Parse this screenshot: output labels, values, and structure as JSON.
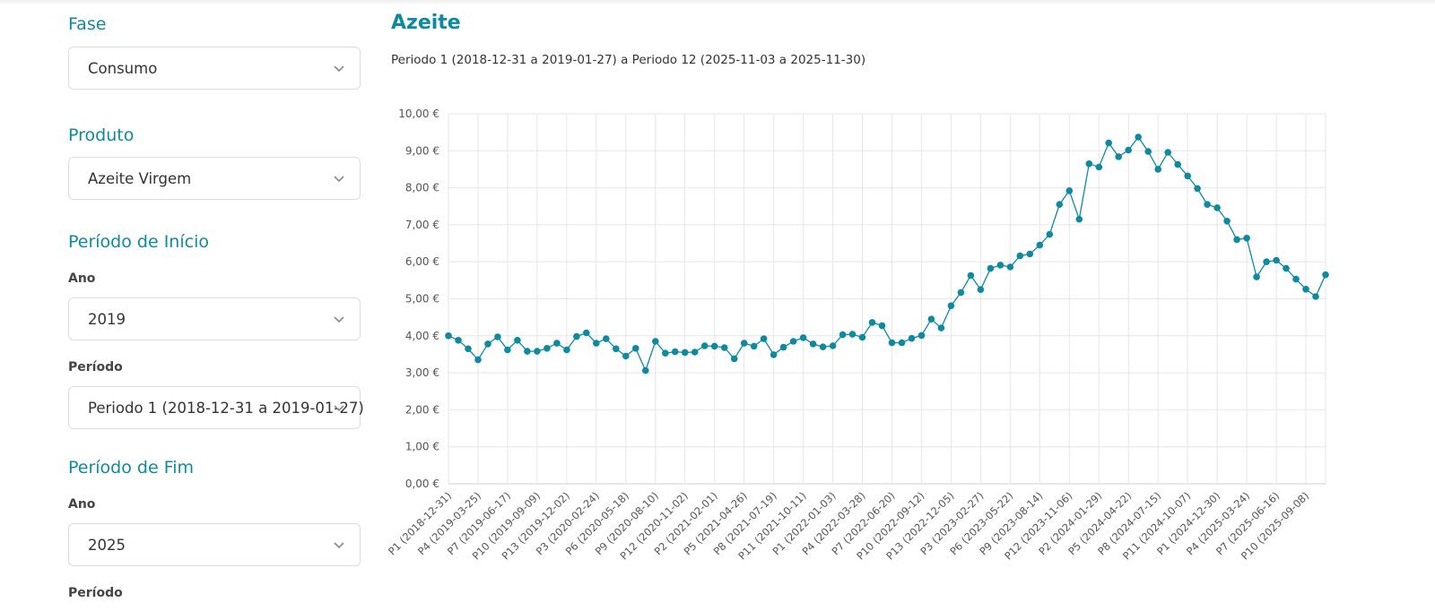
{
  "filters": {
    "fase": {
      "label": "Fase",
      "value": "Consumo"
    },
    "produto": {
      "label": "Produto",
      "value": "Azeite Virgem"
    },
    "inicio": {
      "title": "Período de Início",
      "ano_label": "Ano",
      "ano_value": "2019",
      "periodo_label": "Período",
      "periodo_value": "Periodo 1 (2018-12-31 a 2019-01-27)"
    },
    "fim": {
      "title": "Período de Fim",
      "ano_label": "Ano",
      "ano_value": "2025",
      "periodo_label": "Período"
    }
  },
  "chart_data": {
    "type": "line",
    "title": "Azeite",
    "subtitle": "Periodo 1 (2018-12-31 a 2019-01-27) a Periodo 12 (2025-11-03 a 2025-11-30)",
    "ylim": [
      0,
      10
    ],
    "yticks": [
      "0,00 €",
      "1,00 €",
      "2,00 €",
      "3,00 €",
      "4,00 €",
      "5,00 €",
      "6,00 €",
      "7,00 €",
      "8,00 €",
      "9,00 €",
      "10,00 €"
    ],
    "tick_every": 3,
    "xtick_labels": [
      "P1 (2018-12-31)",
      "P4 (2019-03-25)",
      "P7 (2019-06-17)",
      "P10 (2019-09-09)",
      "P13 (2019-12-02)",
      "P3 (2020-02-24)",
      "P6 (2020-05-18)",
      "P9 (2020-08-10)",
      "P12 (2020-11-02)",
      "P2 (2021-02-01)",
      "P5 (2021-04-26)",
      "P8 (2021-07-19)",
      "P11 (2021-10-11)",
      "P1 (2022-01-03)",
      "P4 (2022-03-28)",
      "P7 (2022-06-20)",
      "P10 (2022-09-12)",
      "P13 (2022-12-05)",
      "P3 (2023-02-27)",
      "P6 (2023-05-22)",
      "P9 (2023-08-14)",
      "P12 (2023-11-06)",
      "P2 (2024-01-29)",
      "P5 (2024-04-22)",
      "P8 (2024-07-15)",
      "P11 (2024-10-07)",
      "P1 (2024-12-30)",
      "P4 (2025-03-24)",
      "P7 (2025-06-16)",
      "P10 (2025-09-08)"
    ],
    "series": [
      {
        "name": "Azeite Virgem",
        "color": "#0e8aa0",
        "values": [
          4.0,
          3.88,
          3.65,
          3.35,
          3.78,
          3.97,
          3.62,
          3.88,
          3.58,
          3.58,
          3.66,
          3.8,
          3.62,
          3.98,
          4.08,
          3.8,
          3.92,
          3.65,
          3.45,
          3.66,
          3.06,
          3.85,
          3.53,
          3.57,
          3.55,
          3.56,
          3.73,
          3.72,
          3.68,
          3.38,
          3.8,
          3.72,
          3.92,
          3.49,
          3.69,
          3.85,
          3.95,
          3.78,
          3.7,
          3.73,
          4.03,
          4.04,
          3.96,
          4.36,
          4.27,
          3.81,
          3.81,
          3.93,
          4.01,
          4.45,
          4.21,
          4.81,
          5.17,
          5.63,
          5.25,
          5.82,
          5.91,
          5.86,
          6.16,
          6.21,
          6.45,
          6.74,
          7.55,
          7.92,
          7.15,
          8.65,
          8.56,
          9.21,
          8.84,
          9.02,
          9.37,
          8.98,
          8.5,
          8.96,
          8.63,
          8.32,
          7.98,
          7.55,
          7.46,
          7.1,
          6.6,
          6.64,
          5.59,
          6.0,
          6.04,
          5.82,
          5.53,
          5.26,
          5.06,
          5.65
        ]
      }
    ]
  }
}
